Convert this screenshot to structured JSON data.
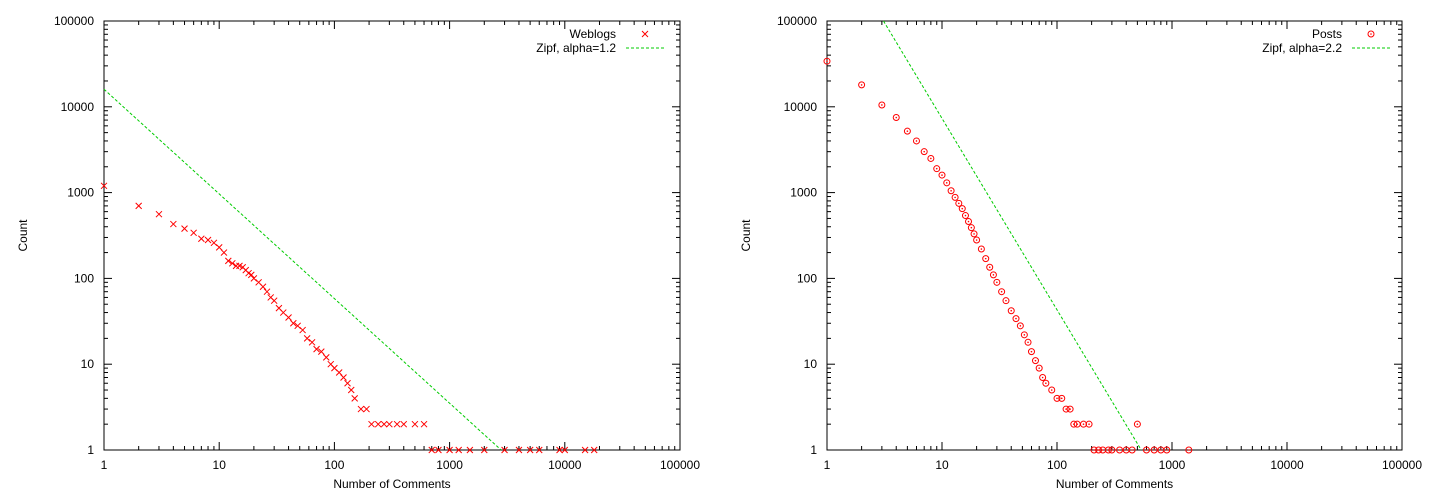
{
  "chart_data": [
    {
      "type": "scatter",
      "xlabel": "Number of Comments",
      "ylabel": "Count",
      "x_scale": "log",
      "y_scale": "log",
      "xlim": [
        1,
        100000
      ],
      "ylim": [
        1,
        100000
      ],
      "x_ticks": [
        "1",
        "10",
        "100",
        "1000",
        "10000",
        "100000"
      ],
      "y_ticks": [
        "1",
        "10",
        "100",
        "1000",
        "10000",
        "100000"
      ],
      "grid": false,
      "legend_position": "top-right",
      "marker_color": "#ff0000",
      "fit_color": "#00cc00",
      "series": [
        {
          "name": "Weblogs",
          "marker": "cross",
          "x": [
            1,
            2,
            3,
            4,
            5,
            6,
            7,
            8,
            9,
            10,
            11,
            12,
            13,
            14,
            15,
            16,
            17,
            18,
            19,
            20,
            22,
            24,
            26,
            28,
            30,
            33,
            36,
            40,
            44,
            48,
            53,
            58,
            64,
            70,
            77,
            85,
            93,
            100,
            110,
            120,
            130,
            140,
            150,
            170,
            190,
            210,
            240,
            270,
            300,
            350,
            400,
            500,
            600,
            700,
            800,
            1000,
            1200,
            1500,
            2000,
            3000,
            4000,
            5000,
            6000,
            9000,
            10000,
            15000,
            18000
          ],
          "y": [
            1200,
            700,
            560,
            430,
            380,
            340,
            290,
            280,
            260,
            230,
            200,
            160,
            150,
            140,
            140,
            135,
            125,
            115,
            110,
            100,
            90,
            80,
            70,
            60,
            55,
            45,
            40,
            35,
            30,
            28,
            25,
            20,
            18,
            15,
            14,
            12,
            10,
            9,
            8,
            7,
            6,
            5,
            4,
            3,
            3,
            2,
            2,
            2,
            2,
            2,
            2,
            2,
            2,
            1,
            1,
            1,
            1,
            1,
            1,
            1,
            1,
            1,
            1,
            1,
            1,
            1,
            1
          ]
        },
        {
          "name": "Zipf, alpha=1.2",
          "line": "dashed",
          "x": [
            1,
            2800
          ],
          "y": [
            16000,
            1
          ]
        }
      ]
    },
    {
      "type": "scatter",
      "xlabel": "Number of Comments",
      "ylabel": "Count",
      "x_scale": "log",
      "y_scale": "log",
      "xlim": [
        1,
        100000
      ],
      "ylim": [
        1,
        100000
      ],
      "x_ticks": [
        "1",
        "10",
        "100",
        "1000",
        "10000",
        "100000"
      ],
      "y_ticks": [
        "1",
        "10",
        "100",
        "1000",
        "10000",
        "100000"
      ],
      "grid": false,
      "legend_position": "top-right",
      "marker_color": "#ff0000",
      "fit_color": "#00cc00",
      "series": [
        {
          "name": "Posts",
          "marker": "circle-dot",
          "x": [
            1,
            2,
            3,
            4,
            5,
            6,
            7,
            8,
            9,
            10,
            11,
            12,
            13,
            14,
            15,
            16,
            17,
            18,
            19,
            20,
            22,
            24,
            26,
            28,
            30,
            33,
            36,
            40,
            44,
            48,
            52,
            56,
            60,
            65,
            70,
            75,
            80,
            90,
            100,
            110,
            120,
            130,
            140,
            150,
            170,
            190,
            210,
            230,
            250,
            280,
            300,
            350,
            400,
            450,
            500,
            600,
            700,
            800,
            900,
            1400
          ],
          "y": [
            34000,
            18000,
            10500,
            7500,
            5200,
            4000,
            3000,
            2500,
            1900,
            1600,
            1300,
            1050,
            880,
            750,
            650,
            540,
            460,
            390,
            330,
            280,
            220,
            170,
            135,
            110,
            90,
            70,
            55,
            42,
            34,
            28,
            22,
            18,
            14,
            11,
            9,
            7,
            6,
            5,
            4,
            4,
            3,
            3,
            2,
            2,
            2,
            2,
            1,
            1,
            1,
            1,
            1,
            1,
            1,
            1,
            2,
            1,
            1,
            1,
            1,
            1
          ]
        },
        {
          "name": "Zipf, alpha=2.2",
          "line": "dashed",
          "x": [
            3.1,
            540
          ],
          "y": [
            100000,
            1
          ]
        }
      ]
    }
  ]
}
